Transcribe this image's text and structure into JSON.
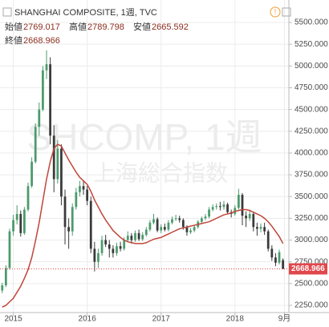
{
  "chart_data": {
    "type": "candlestick",
    "title": "SHANGHAI COMPOSITE, 1週, TVC",
    "watermark": [
      "SHCOMP, 1週",
      "上海総合指数"
    ],
    "ohlc_labels": [
      "始値",
      "高値",
      "安値",
      "終値"
    ],
    "up_color": "#4c9a6c",
    "down_color": "#3a3a3a",
    "last_price_color": "#e0474c",
    "grid": true,
    "xlim": [
      2014.82,
      2018.73
    ],
    "xticks": [
      2015,
      2016,
      2017,
      2018,
      {
        "value": 2018.67,
        "label": "9月"
      }
    ],
    "ylim": [
      2167,
      5758
    ],
    "yticks": [
      {
        "value": 2250,
        "label": "2250.000"
      },
      {
        "value": 2500,
        "label": "2500.000"
      },
      {
        "value": 2750,
        "label": "2750.000"
      },
      {
        "value": 3000,
        "label": "3000.000"
      },
      {
        "value": 3250,
        "label": "3250.000"
      },
      {
        "value": 3500,
        "label": "3500.000"
      },
      {
        "value": 3750,
        "label": "3750.000"
      },
      {
        "value": 4000,
        "label": "4000.000"
      },
      {
        "value": 4250,
        "label": "4250.000"
      },
      {
        "value": 4500,
        "label": "4500.000"
      },
      {
        "value": 4750,
        "label": "4750.000"
      },
      {
        "value": 5000,
        "label": "5000.000"
      },
      {
        "value": 5250,
        "label": "5250.000"
      },
      {
        "value": 5500,
        "label": "5500.000"
      }
    ],
    "x": [
      2014.85,
      2014.9,
      2014.95,
      2015.0,
      2015.05,
      2015.1,
      2015.15,
      2015.2,
      2015.25,
      2015.3,
      2015.35,
      2015.4,
      2015.45,
      2015.5,
      2015.55,
      2015.6,
      2015.65,
      2015.7,
      2015.75,
      2015.8,
      2015.85,
      2015.9,
      2015.95,
      2016.0,
      2016.05,
      2016.1,
      2016.15,
      2016.2,
      2016.25,
      2016.3,
      2016.35,
      2016.4,
      2016.45,
      2016.5,
      2016.55,
      2016.6,
      2016.65,
      2016.7,
      2016.75,
      2016.8,
      2016.85,
      2016.9,
      2016.95,
      2017.0,
      2017.05,
      2017.1,
      2017.15,
      2017.2,
      2017.25,
      2017.3,
      2017.35,
      2017.4,
      2017.45,
      2017.5,
      2017.55,
      2017.6,
      2017.65,
      2017.7,
      2017.75,
      2017.8,
      2017.85,
      2017.9,
      2017.95,
      2018.0,
      2018.05,
      2018.1,
      2018.15,
      2018.2,
      2018.25,
      2018.3,
      2018.35,
      2018.4,
      2018.45,
      2018.5,
      2018.55,
      2018.6,
      2018.65
    ],
    "open": [
      2420,
      2480,
      2680,
      3100,
      3230,
      3300,
      3080,
      3350,
      3620,
      3900,
      4300,
      4500,
      4950,
      5020,
      4200,
      3700,
      4050,
      3500,
      3150,
      3100,
      3380,
      3550,
      3620,
      3580,
      3450,
      2900,
      2750,
      2850,
      3000,
      2950,
      2900,
      2850,
      2930,
      2900,
      3000,
      3050,
      3000,
      3080,
      3010,
      3060,
      3120,
      3200,
      3240,
      3110,
      3150,
      3120,
      3200,
      3240,
      3250,
      3230,
      3150,
      3090,
      3110,
      3150,
      3210,
      3250,
      3270,
      3350,
      3380,
      3390,
      3380,
      3410,
      3320,
      3300,
      3370,
      3520,
      3280,
      3250,
      3300,
      3150,
      3130,
      3150,
      3100,
      2900,
      2800,
      2740,
      2769.017
    ],
    "high": [
      2510,
      2710,
      3130,
      3290,
      3400,
      3340,
      3380,
      3660,
      3950,
      4340,
      4580,
      5000,
      5180,
      5100,
      4320,
      4150,
      4100,
      3580,
      3250,
      3420,
      3600,
      3680,
      3690,
      3620,
      3500,
      2980,
      2900,
      3050,
      3060,
      3000,
      2940,
      2970,
      2980,
      3030,
      3100,
      3080,
      3110,
      3120,
      3090,
      3150,
      3230,
      3300,
      3260,
      3180,
      3190,
      3230,
      3270,
      3290,
      3280,
      3250,
      3170,
      3140,
      3170,
      3230,
      3270,
      3300,
      3380,
      3410,
      3420,
      3440,
      3450,
      3430,
      3350,
      3400,
      3590,
      3540,
      3330,
      3350,
      3320,
      3200,
      3190,
      3200,
      3120,
      2940,
      2850,
      2890,
      2789.798
    ],
    "low": [
      2390,
      2460,
      2660,
      3050,
      3180,
      3040,
      3060,
      3330,
      3600,
      3880,
      4200,
      4480,
      4850,
      4100,
      3550,
      3650,
      3400,
      2950,
      2900,
      3050,
      3350,
      3500,
      3520,
      3400,
      2850,
      2640,
      2680,
      2820,
      2920,
      2800,
      2800,
      2820,
      2870,
      2880,
      2980,
      2960,
      2980,
      2990,
      2990,
      3040,
      3100,
      3180,
      3090,
      3080,
      3100,
      3100,
      3180,
      3220,
      3200,
      3120,
      3050,
      3070,
      3090,
      3130,
      3190,
      3230,
      3250,
      3330,
      3350,
      3340,
      3350,
      3300,
      3260,
      3280,
      3350,
      3170,
      3150,
      3220,
      3100,
      3050,
      3090,
      3060,
      2870,
      2760,
      2700,
      2720,
      2665.592
    ],
    "close": [
      2480,
      2680,
      3100,
      3230,
      3300,
      3080,
      3350,
      3620,
      3900,
      4300,
      4500,
      4950,
      5020,
      4200,
      3700,
      4050,
      3500,
      3150,
      3100,
      3380,
      3550,
      3620,
      3580,
      3450,
      2900,
      2750,
      2850,
      3000,
      2950,
      2900,
      2850,
      2930,
      2900,
      3000,
      3050,
      3000,
      3080,
      3010,
      3060,
      3120,
      3200,
      3240,
      3110,
      3150,
      3120,
      3200,
      3240,
      3250,
      3230,
      3150,
      3090,
      3110,
      3150,
      3210,
      3250,
      3270,
      3350,
      3380,
      3390,
      3380,
      3410,
      3320,
      3300,
      3370,
      3520,
      3280,
      3250,
      3300,
      3150,
      3130,
      3150,
      3100,
      2900,
      2800,
      2740,
      2860,
      2668.966
    ],
    "moving_average": {
      "color": "#c0463a",
      "values": [
        2230,
        2250,
        2290,
        2330,
        2400,
        2470,
        2560,
        2660,
        2800,
        2990,
        3200,
        3450,
        3700,
        3900,
        4050,
        4100,
        4080,
        4000,
        3920,
        3850,
        3780,
        3720,
        3680,
        3640,
        3560,
        3460,
        3380,
        3300,
        3230,
        3170,
        3110,
        3070,
        3030,
        3000,
        2980,
        2970,
        2960,
        2960,
        2960,
        2970,
        2990,
        3010,
        3020,
        3030,
        3050,
        3070,
        3090,
        3110,
        3130,
        3140,
        3150,
        3160,
        3170,
        3180,
        3190,
        3200,
        3210,
        3230,
        3250,
        3270,
        3290,
        3300,
        3310,
        3330,
        3340,
        3350,
        3350,
        3340,
        3320,
        3300,
        3280,
        3250,
        3210,
        3160,
        3100,
        3040,
        2960
      ]
    }
  }
}
